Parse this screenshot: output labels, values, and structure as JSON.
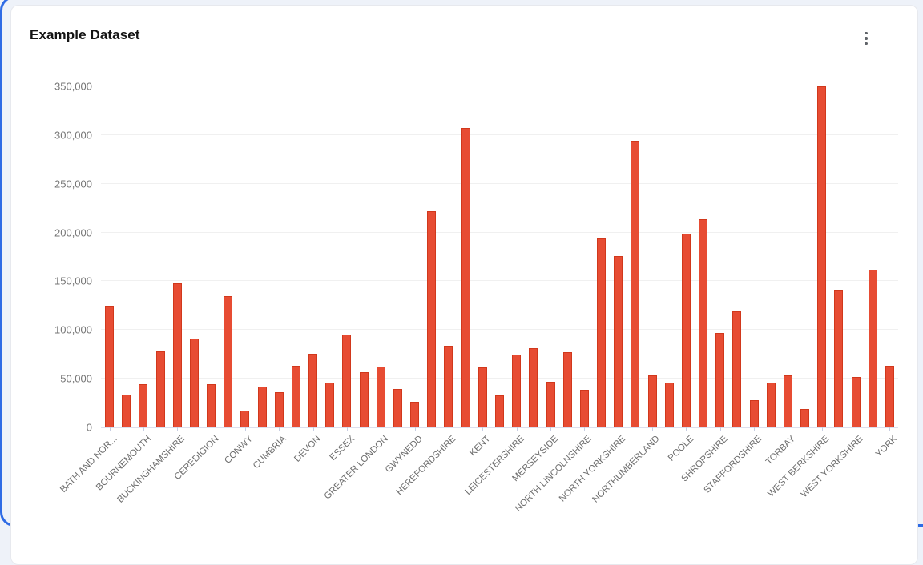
{
  "card": {
    "title": "Example Dataset",
    "menu_icon": "kebab-menu-icon"
  },
  "colors": {
    "bar_fill": "#e74c33",
    "bar_border": "#d1381c",
    "gridline": "#f0f0f0",
    "axis_line": "#dcdfee",
    "selection_outline": "#2e6be5",
    "text_muted": "#757575"
  },
  "chart_data": {
    "type": "bar",
    "title": "Example Dataset",
    "grid": true,
    "legend": "none",
    "x_label_rotation": -45,
    "x_label_note": "every other bar labeled",
    "ylim": [
      0,
      350000
    ],
    "y_tick_step": 50000,
    "y_tick_labels": [
      "0",
      "50,000",
      "100,000",
      "150,000",
      "200,000",
      "250,000",
      "300,000",
      "350,000"
    ],
    "categories": [
      "BATH AND NOR...",
      "",
      "BOURNEMOUTH",
      "",
      "BUCKINGHAMSHIRE",
      "",
      "CEREDIGION",
      "",
      "CONWY",
      "",
      "CUMBRIA",
      "",
      "DEVON",
      "",
      "ESSEX",
      "",
      "GREATER LONDON",
      "",
      "GWYNEDD",
      "",
      "HEREFORDSHIRE",
      "",
      "KENT",
      "",
      "LEICESTERSHIRE",
      "",
      "MERSEYSIDE",
      "",
      "NORTH LINCOLNSHIRE",
      "",
      "NORTH YORKSHIRE",
      "",
      "NORTHUMBERLAND",
      "",
      "POOLE",
      "",
      "SHROPSHIRE",
      "",
      "STAFFORDSHIRE",
      "",
      "TORBAY",
      "",
      "WEST BERKSHIRE",
      "",
      "WEST YORKSHIRE",
      "",
      "YORK"
    ],
    "values": [
      124500,
      34000,
      44500,
      78000,
      148000,
      91500,
      44000,
      134500,
      17500,
      42000,
      36500,
      63000,
      76000,
      46000,
      95500,
      57000,
      62500,
      39500,
      26500,
      222000,
      84000,
      307000,
      62000,
      32500,
      74500,
      81000,
      46500,
      77500,
      39000,
      194000,
      176000,
      294000,
      53500,
      46000,
      199000,
      214000,
      97000,
      119500,
      28000,
      46000,
      53500,
      18500,
      350000,
      141000,
      52000,
      162000,
      63000
    ]
  }
}
